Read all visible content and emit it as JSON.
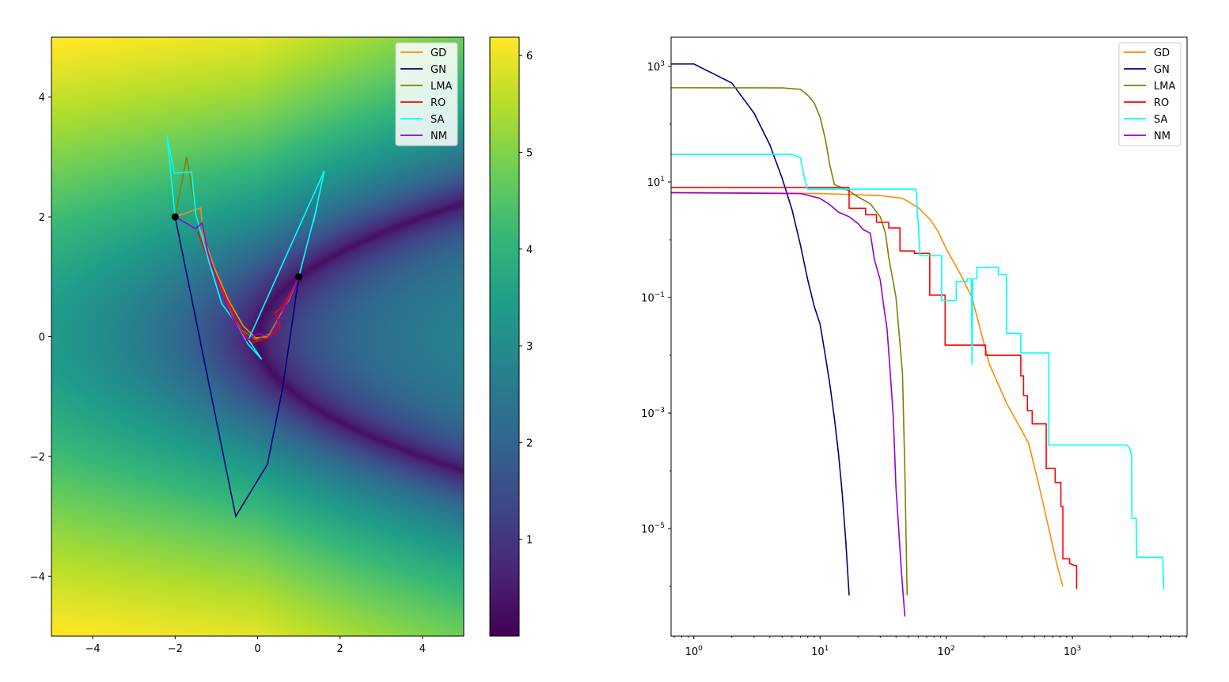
{
  "chart_data": [
    {
      "type": "heatmap",
      "title": "",
      "xlabel": "",
      "ylabel": "",
      "xlim": [
        -5,
        5
      ],
      "ylim": [
        -5,
        5
      ],
      "xticks": [
        -4,
        -2,
        0,
        2,
        4
      ],
      "xtick_labels": [
        "−4",
        "−2",
        "0",
        "2",
        "4"
      ],
      "yticks": [
        -4,
        -2,
        0,
        2,
        4
      ],
      "ytick_labels": [
        "−4",
        "−2",
        "0",
        "2",
        "4"
      ],
      "colorbar": {
        "range": [
          0,
          6.19
        ],
        "ticks": [
          1,
          2,
          3,
          4,
          5,
          6
        ],
        "tick_labels": [
          "1",
          "2",
          "3",
          "4",
          "5",
          "6"
        ],
        "colormap": "viridis"
      },
      "legend": {
        "placement": "top-right"
      },
      "markers": [
        {
          "name": "start",
          "x": -2,
          "y": 2,
          "color": "#000000"
        },
        {
          "name": "optimum",
          "x": 1,
          "y": 1,
          "color": "#000000"
        }
      ],
      "series": [
        {
          "name": "GD",
          "color": "#ff8c00",
          "points": [
            [
              -2,
              2
            ],
            [
              -1.38,
              2.15
            ],
            [
              -1.32,
              1.7
            ],
            [
              -1.05,
              1.15
            ],
            [
              -0.7,
              0.6
            ],
            [
              -0.35,
              0.18
            ],
            [
              -0.05,
              -0.02
            ],
            [
              0.25,
              0.0
            ],
            [
              0.5,
              0.3
            ],
            [
              0.75,
              0.6
            ],
            [
              1,
              1
            ]
          ]
        },
        {
          "name": "GN",
          "color": "#000080",
          "points": [
            [
              -2,
              2
            ],
            [
              -0.53,
              -3.0
            ],
            [
              0.24,
              -2.13
            ],
            [
              0.61,
              -0.85
            ],
            [
              1,
              1
            ]
          ]
        },
        {
          "name": "LMA",
          "color": "#808000",
          "points": [
            [
              -2,
              2
            ],
            [
              -1.72,
              3.0
            ],
            [
              -1.5,
              2.1
            ],
            [
              -1.2,
              1.3
            ],
            [
              -0.8,
              0.6
            ],
            [
              -0.4,
              0.12
            ],
            [
              -0.05,
              -0.05
            ],
            [
              0.3,
              0.05
            ],
            [
              0.6,
              0.4
            ],
            [
              1,
              1
            ]
          ]
        },
        {
          "name": "RO",
          "color": "#ff0000",
          "points": [
            [
              -1.45,
              1.75
            ],
            [
              -1.2,
              1.3
            ],
            [
              -0.8,
              0.7
            ],
            [
              -0.45,
              0.15
            ],
            [
              -0.15,
              -0.1
            ],
            [
              0.25,
              -0.02
            ],
            [
              0.55,
              0.15
            ],
            [
              0.42,
              0.4
            ],
            [
              0.62,
              0.5
            ],
            [
              0.85,
              0.8
            ],
            [
              1,
              1
            ]
          ]
        },
        {
          "name": "SA",
          "color": "#00ffff",
          "points": [
            [
              -2,
              2
            ],
            [
              -2.2,
              3.37
            ],
            [
              -2.02,
              2.73
            ],
            [
              -1.6,
              2.75
            ],
            [
              -1.5,
              2.05
            ],
            [
              -1.2,
              1.3
            ],
            [
              -0.87,
              0.55
            ],
            [
              -0.6,
              0.3
            ],
            [
              -0.24,
              -0.12
            ],
            [
              0.1,
              -0.38
            ],
            [
              -0.22,
              -0.05
            ],
            [
              1.62,
              2.77
            ],
            [
              1.35,
              1.9
            ],
            [
              1.45,
              2.2
            ],
            [
              1.15,
              1.4
            ],
            [
              1,
              1
            ]
          ]
        },
        {
          "name": "NM",
          "color": "#9400d3",
          "points": [
            [
              -2,
              2
            ],
            [
              -1.5,
              1.8
            ],
            [
              -1.35,
              1.9
            ],
            [
              -1.2,
              1.4
            ],
            [
              -0.9,
              0.75
            ],
            [
              -0.6,
              0.3
            ],
            [
              -0.3,
              -0.08
            ],
            [
              0.0,
              0.05
            ],
            [
              0.3,
              0.0
            ],
            [
              0.6,
              0.4
            ],
            [
              1,
              1
            ]
          ]
        }
      ]
    },
    {
      "type": "line",
      "title": "",
      "xlabel": "",
      "ylabel": "",
      "xscale": "log",
      "yscale": "log",
      "xlim": [
        0.66,
        8100
      ],
      "ylim": [
        1.38e-07,
        3200
      ],
      "xticks": [
        1,
        10,
        100,
        1000
      ],
      "xtick_labels": [
        "10^0",
        "10^1",
        "10^2",
        "10^3"
      ],
      "yticks": [
        1000,
        10,
        0.1,
        0.001,
        1e-05
      ],
      "ytick_labels": [
        "10^3",
        "10^1",
        "10^−1",
        "10^−3",
        "10^−5"
      ],
      "legend": {
        "placement": "top-right"
      },
      "series": [
        {
          "name": "GD",
          "color": "#ff8c00",
          "points": [
            [
              0.66,
              6.6
            ],
            [
              10,
              6.3
            ],
            [
              30,
              5.8
            ],
            [
              45,
              5.2
            ],
            [
              60,
              3.6
            ],
            [
              75,
              2.2
            ],
            [
              86,
              1.4
            ],
            [
              100,
              0.7
            ],
            [
              130,
              0.25
            ],
            [
              160,
              0.1
            ],
            [
              220,
              0.007
            ],
            [
              300,
              0.0015
            ],
            [
              450,
              0.0003
            ],
            [
              550,
              5e-05
            ],
            [
              650,
              1e-05
            ],
            [
              750,
              2.5e-06
            ],
            [
              840,
              1e-06
            ]
          ]
        },
        {
          "name": "GN",
          "color": "#000080",
          "points": [
            [
              0.66,
              1100
            ],
            [
              1,
              1100
            ],
            [
              2,
              515
            ],
            [
              3,
              155
            ],
            [
              4,
              44
            ],
            [
              5,
              11.7
            ],
            [
              6,
              3.3
            ],
            [
              7,
              0.8
            ],
            [
              8,
              0.2
            ],
            [
              9,
              0.07
            ],
            [
              10,
              0.035
            ],
            [
              11,
              0.01
            ],
            [
              12,
              0.003
            ],
            [
              13,
              0.0008
            ],
            [
              14,
              0.0002
            ],
            [
              15,
              4e-05
            ],
            [
              16,
              6e-06
            ],
            [
              17,
              7e-07
            ]
          ]
        },
        {
          "name": "LMA",
          "color": "#808000",
          "points": [
            [
              0.66,
              427
            ],
            [
              5,
              425
            ],
            [
              7,
              400
            ],
            [
              8,
              316
            ],
            [
              9,
              233
            ],
            [
              10,
              132
            ],
            [
              11,
              56
            ],
            [
              12,
              18.7
            ],
            [
              13,
              9
            ],
            [
              17,
              7
            ],
            [
              20,
              5.5
            ],
            [
              25,
              4.2
            ],
            [
              30,
              2.5
            ],
            [
              33,
              1.3
            ],
            [
              35,
              0.5
            ],
            [
              40,
              0.1
            ],
            [
              45,
              0.005
            ],
            [
              47,
              0.0001
            ],
            [
              49,
              7e-07
            ]
          ]
        },
        {
          "name": "RO",
          "color": "#ff0000",
          "points": [
            [
              0.66,
              8
            ],
            [
              17,
              8
            ],
            [
              17,
              3.5
            ],
            [
              23,
              3.5
            ],
            [
              23,
              2.7
            ],
            [
              28,
              2.7
            ],
            [
              28,
              2.0
            ],
            [
              35,
              2.0
            ],
            [
              35,
              1.6
            ],
            [
              43,
              1.6
            ],
            [
              43,
              0.64
            ],
            [
              56,
              0.64
            ],
            [
              56,
              0.58
            ],
            [
              74,
              0.58
            ],
            [
              74,
              0.11
            ],
            [
              98,
              0.11
            ],
            [
              98,
              0.015
            ],
            [
              205,
              0.015
            ],
            [
              205,
              0.01
            ],
            [
              390,
              0.01
            ],
            [
              390,
              0.0044
            ],
            [
              410,
              0.0044
            ],
            [
              410,
              0.002
            ],
            [
              440,
              0.002
            ],
            [
              440,
              0.0011
            ],
            [
              480,
              0.0011
            ],
            [
              480,
              0.00065
            ],
            [
              620,
              0.00065
            ],
            [
              620,
              0.00011
            ],
            [
              730,
              0.00011
            ],
            [
              730,
              6.3e-05
            ],
            [
              810,
              6.3e-05
            ],
            [
              810,
              2.4e-05
            ],
            [
              840,
              2.4e-05
            ],
            [
              840,
              3e-06
            ],
            [
              950,
              3e-06
            ],
            [
              950,
              2.5e-06
            ],
            [
              1040,
              2.3e-06
            ],
            [
              1080,
              2.3e-06
            ],
            [
              1080,
              9e-07
            ]
          ]
        },
        {
          "name": "SA",
          "color": "#00ffff",
          "points": [
            [
              0.66,
              30
            ],
            [
              6,
              30
            ],
            [
              7,
              26
            ],
            [
              7.5,
              12
            ],
            [
              8,
              7.5
            ],
            [
              57,
              7.5
            ],
            [
              58,
              6.5
            ],
            [
              62,
              0.53
            ],
            [
              92,
              0.53
            ],
            [
              92,
              0.089
            ],
            [
              120,
              0.089
            ],
            [
              120,
              0.19
            ],
            [
              146,
              0.19
            ],
            [
              146,
              0.21
            ],
            [
              158,
              0.21
            ],
            [
              160,
              0.007
            ],
            [
              162,
              0.21
            ],
            [
              175,
              0.21
            ],
            [
              175,
              0.33
            ],
            [
              260,
              0.33
            ],
            [
              260,
              0.25
            ],
            [
              300,
              0.25
            ],
            [
              300,
              0.024
            ],
            [
              390,
              0.024
            ],
            [
              390,
              0.011
            ],
            [
              650,
              0.011
            ],
            [
              650,
              0.00028
            ],
            [
              2700,
              0.00028
            ],
            [
              2850,
              0.00024
            ],
            [
              2950,
              0.00018
            ],
            [
              2960,
              1.5e-05
            ],
            [
              3200,
              1.5e-05
            ],
            [
              3230,
              3.2e-06
            ],
            [
              5200,
              3.2e-06
            ],
            [
              5280,
              9e-07
            ]
          ]
        },
        {
          "name": "NM",
          "color": "#9400d3",
          "points": [
            [
              0.66,
              6.5
            ],
            [
              7,
              6.3
            ],
            [
              10,
              5.2
            ],
            [
              12,
              4
            ],
            [
              14,
              3
            ],
            [
              17,
              2.5
            ],
            [
              20,
              1.9
            ],
            [
              22,
              1.5
            ],
            [
              25,
              1.3
            ],
            [
              27,
              0.45
            ],
            [
              30,
              0.2
            ],
            [
              32,
              0.07
            ],
            [
              34,
              0.028
            ],
            [
              36,
              0.005
            ],
            [
              38,
              0.0009
            ],
            [
              40,
              5e-05
            ],
            [
              42,
              1e-05
            ],
            [
              44,
              2e-06
            ],
            [
              47,
              3e-07
            ]
          ]
        }
      ]
    }
  ]
}
